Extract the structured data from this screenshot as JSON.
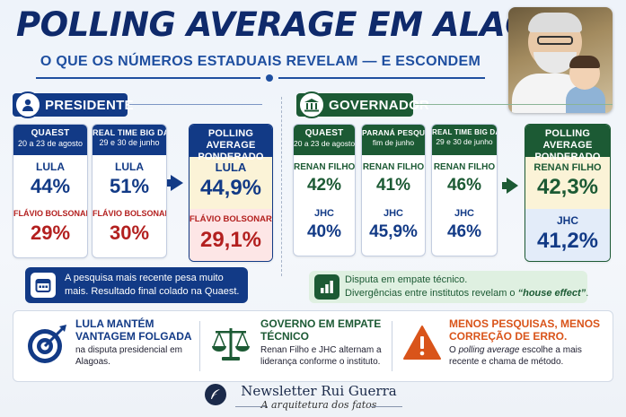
{
  "header": {
    "title": "POLLING AVERAGE EM ALAGOAS",
    "subtitle": "O QUE OS NÚMEROS ESTADUAIS REVELAM — E ESCONDEM"
  },
  "colors": {
    "navy": "#123a86",
    "green": "#1c5a34",
    "red": "#b3201f",
    "orange": "#d9541a"
  },
  "president": {
    "label": "PRESIDENTE",
    "icon": "person-icon",
    "polls": [
      {
        "source": "QUAEST",
        "dates": "20 a 23 de agosto",
        "c1_name": "LULA",
        "c1_value": "44%",
        "c2_name": "FLÁVIO BOLSONARO",
        "c2_value": "29%"
      },
      {
        "source": "REAL TIME BIG DATA",
        "dates": "29 e 30 de junho",
        "c1_name": "LULA",
        "c1_value": "51%",
        "c2_name": "FLÁVIO BOLSONARO",
        "c2_value": "30%"
      }
    ],
    "average": {
      "header": "POLLING AVERAGE PONDERADO",
      "c1_name": "LULA",
      "c1_value": "44,9%",
      "c2_name": "FLÁVIO BOLSONARO",
      "c2_value": "29,1%"
    },
    "note": "A pesquisa mais recente pesa muito mais. Resultado final colado na Quaest."
  },
  "governor": {
    "label": "GOVERNADOR",
    "icon": "building-icon",
    "polls": [
      {
        "source": "QUAEST",
        "dates": "20 a 23 de agosto",
        "c1_name": "RENAN FILHO",
        "c1_value": "42%",
        "c2_name": "JHC",
        "c2_value": "40%"
      },
      {
        "source": "PARANÁ PESQUISAS",
        "dates": "fim de junho",
        "c1_name": "RENAN FILHO",
        "c1_value": "41%",
        "c2_name": "JHC",
        "c2_value": "45,9%"
      },
      {
        "source": "REAL TIME BIG DATA",
        "dates": "29 e 30 de junho",
        "c1_name": "RENAN FILHO",
        "c1_value": "46%",
        "c2_name": "JHC",
        "c2_value": "46%"
      }
    ],
    "average": {
      "header": "POLLING AVERAGE PONDERADO",
      "c1_name": "RENAN FILHO",
      "c1_value": "42,3%",
      "c2_name": "JHC",
      "c2_value": "41,2%"
    },
    "note_line1": "Disputa em empate técnico.",
    "note_line2_a": "Divergências entre institutos revelam o ",
    "note_line2_em": "“house effect”",
    "note_line2_b": "."
  },
  "takeaways": [
    {
      "icon": "target-icon",
      "title": "LULA MANTÉM VANTAGEM FOLGADA",
      "body": "na disputa presidencial em Alagoas."
    },
    {
      "icon": "scales-icon",
      "title": "GOVERNO EM EMPATE TÉCNICO",
      "body": "Renan Filho e JHC alternam a liderança conforme o instituto."
    },
    {
      "icon": "warning-icon",
      "title": "MENOS PESQUISAS, MENOS CORREÇÃO DE ERRO.",
      "body_a": "O ",
      "body_em": "polling average",
      "body_b": " escolhe a mais recente e chama de método."
    }
  ],
  "footer": {
    "title": "Newsletter Rui Guerra",
    "subtitle": "A arquitetura dos fatos"
  }
}
